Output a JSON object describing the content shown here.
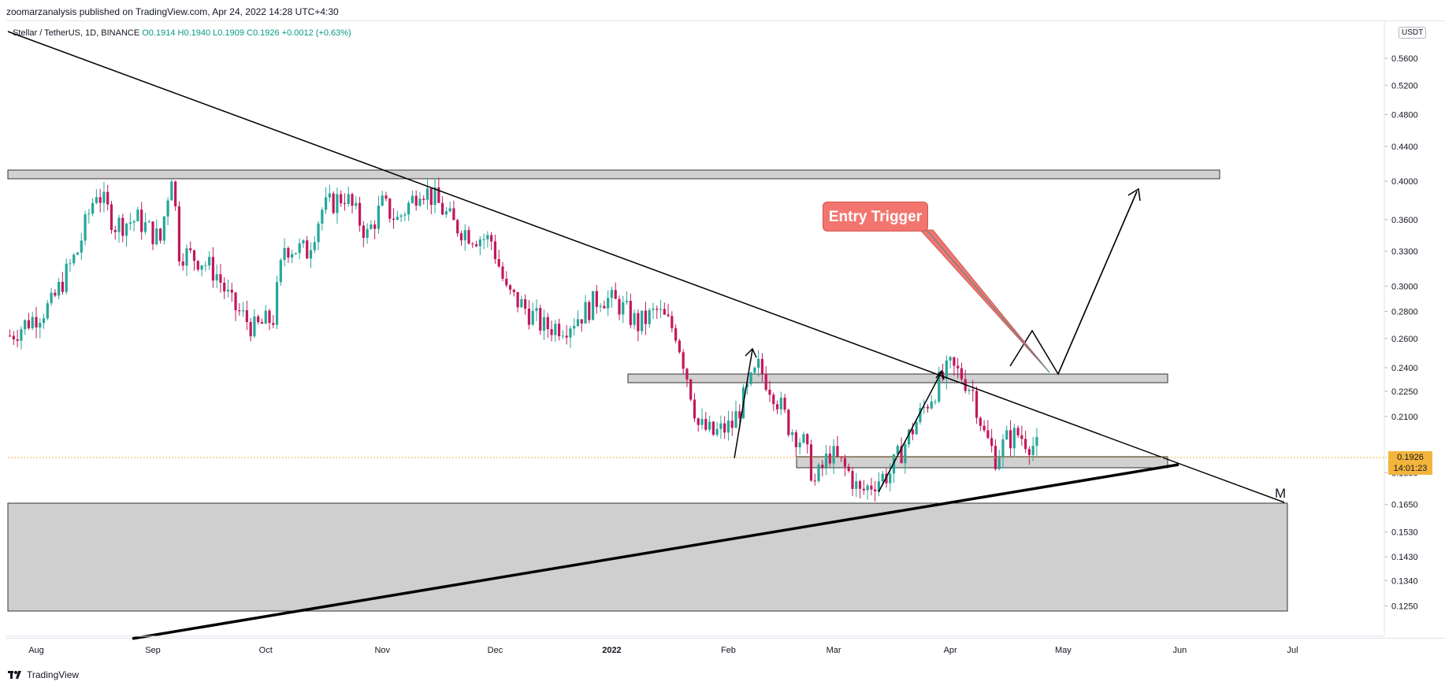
{
  "header": {
    "publisher_text": "zoomarzanalysis published on TradingView.com, Apr 24, 2022 14:28 UTC+4:30"
  },
  "legend": {
    "symbol": "Stellar / TetherUS, 1D, BINANCE",
    "open": "O0.1914",
    "high": "H0.1940",
    "low": "L0.1909",
    "close": "C0.1926",
    "change": "+0.0012 (+0.63%)"
  },
  "annotations": {
    "entry_label": "Entry Trigger",
    "pattern_letter": "M"
  },
  "price_scale": {
    "currency_badge": "USDT",
    "current_price": "0.1926",
    "countdown": "14:01:23"
  },
  "footer": {
    "brand": "TradingView"
  },
  "colors": {
    "up_candle": "#26a69a",
    "down_candle": "#c2185b",
    "zone_fill": "#d1d1d1",
    "price_tag": "#f2b43c",
    "entry_label": "#f2766f"
  },
  "chart_data": {
    "type": "candlestick",
    "y_scale": "log",
    "ylim": [
      0.115,
      0.64
    ],
    "x_tick_labels": [
      "Aug",
      "Sep",
      "Oct",
      "Nov",
      "Dec",
      "2022",
      "Feb",
      "Mar",
      "Apr",
      "May",
      "Jun",
      "Jul"
    ],
    "x_tick_dates": [
      "2021-08-01",
      "2021-09-01",
      "2021-10-01",
      "2021-11-01",
      "2021-12-01",
      "2022-01-01",
      "2022-02-01",
      "2022-03-01",
      "2022-04-01",
      "2022-05-01",
      "2022-06-01",
      "2022-07-01"
    ],
    "y_tick_labels": [
      "0.5600",
      "0.5200",
      "0.4800",
      "0.4400",
      "0.4000",
      "0.3600",
      "0.3300",
      "0.3000",
      "0.2800",
      "0.2600",
      "0.2400",
      "0.2250",
      "0.2100",
      "0.1800",
      "0.1650",
      "0.1530",
      "0.1430",
      "0.1340",
      "0.1250"
    ],
    "current_price": 0.1926,
    "close_path": [
      [
        "2021-07-25",
        0.262
      ],
      [
        "2021-08-05",
        0.285
      ],
      [
        "2021-08-12",
        0.33
      ],
      [
        "2021-08-17",
        0.39
      ],
      [
        "2021-08-22",
        0.355
      ],
      [
        "2021-08-28",
        0.36
      ],
      [
        "2021-09-03",
        0.34
      ],
      [
        "2021-09-06",
        0.41
      ],
      [
        "2021-09-08",
        0.33
      ],
      [
        "2021-09-14",
        0.322
      ],
      [
        "2021-09-18",
        0.31
      ],
      [
        "2021-09-22",
        0.285
      ],
      [
        "2021-09-28",
        0.267
      ],
      [
        "2021-10-03",
        0.275
      ],
      [
        "2021-10-06",
        0.335
      ],
      [
        "2021-10-12",
        0.33
      ],
      [
        "2021-10-16",
        0.37
      ],
      [
        "2021-10-22",
        0.385
      ],
      [
        "2021-10-28",
        0.345
      ],
      [
        "2021-11-01",
        0.375
      ],
      [
        "2021-11-05",
        0.36
      ],
      [
        "2021-11-09",
        0.38
      ],
      [
        "2021-11-11",
        0.395
      ],
      [
        "2021-11-15",
        0.38
      ],
      [
        "2021-11-20",
        0.355
      ],
      [
        "2021-11-25",
        0.345
      ],
      [
        "2021-11-30",
        0.34
      ],
      [
        "2021-12-04",
        0.295
      ],
      [
        "2021-12-08",
        0.285
      ],
      [
        "2021-12-14",
        0.268
      ],
      [
        "2021-12-20",
        0.27
      ],
      [
        "2021-12-25",
        0.28
      ],
      [
        "2021-12-29",
        0.292
      ],
      [
        "2022-01-03",
        0.285
      ],
      [
        "2022-01-08",
        0.27
      ],
      [
        "2022-01-13",
        0.28
      ],
      [
        "2022-01-18",
        0.265
      ],
      [
        "2022-01-21",
        0.235
      ],
      [
        "2022-01-24",
        0.205
      ],
      [
        "2022-01-28",
        0.2
      ],
      [
        "2022-02-02",
        0.205
      ],
      [
        "2022-02-05",
        0.22
      ],
      [
        "2022-02-09",
        0.24
      ],
      [
        "2022-02-13",
        0.225
      ],
      [
        "2022-02-17",
        0.205
      ],
      [
        "2022-02-21",
        0.195
      ],
      [
        "2022-02-24",
        0.175
      ],
      [
        "2022-02-28",
        0.19
      ],
      [
        "2022-03-05",
        0.18
      ],
      [
        "2022-03-08",
        0.17
      ],
      [
        "2022-03-12",
        0.176
      ],
      [
        "2022-03-16",
        0.18
      ],
      [
        "2022-03-20",
        0.195
      ],
      [
        "2022-03-25",
        0.215
      ],
      [
        "2022-03-29",
        0.23
      ],
      [
        "2022-04-01",
        0.24
      ],
      [
        "2022-04-04",
        0.235
      ],
      [
        "2022-04-07",
        0.225
      ],
      [
        "2022-04-10",
        0.2
      ],
      [
        "2022-04-13",
        0.188
      ],
      [
        "2022-04-16",
        0.197
      ],
      [
        "2022-04-19",
        0.2
      ],
      [
        "2022-04-24",
        0.1926
      ]
    ]
  }
}
